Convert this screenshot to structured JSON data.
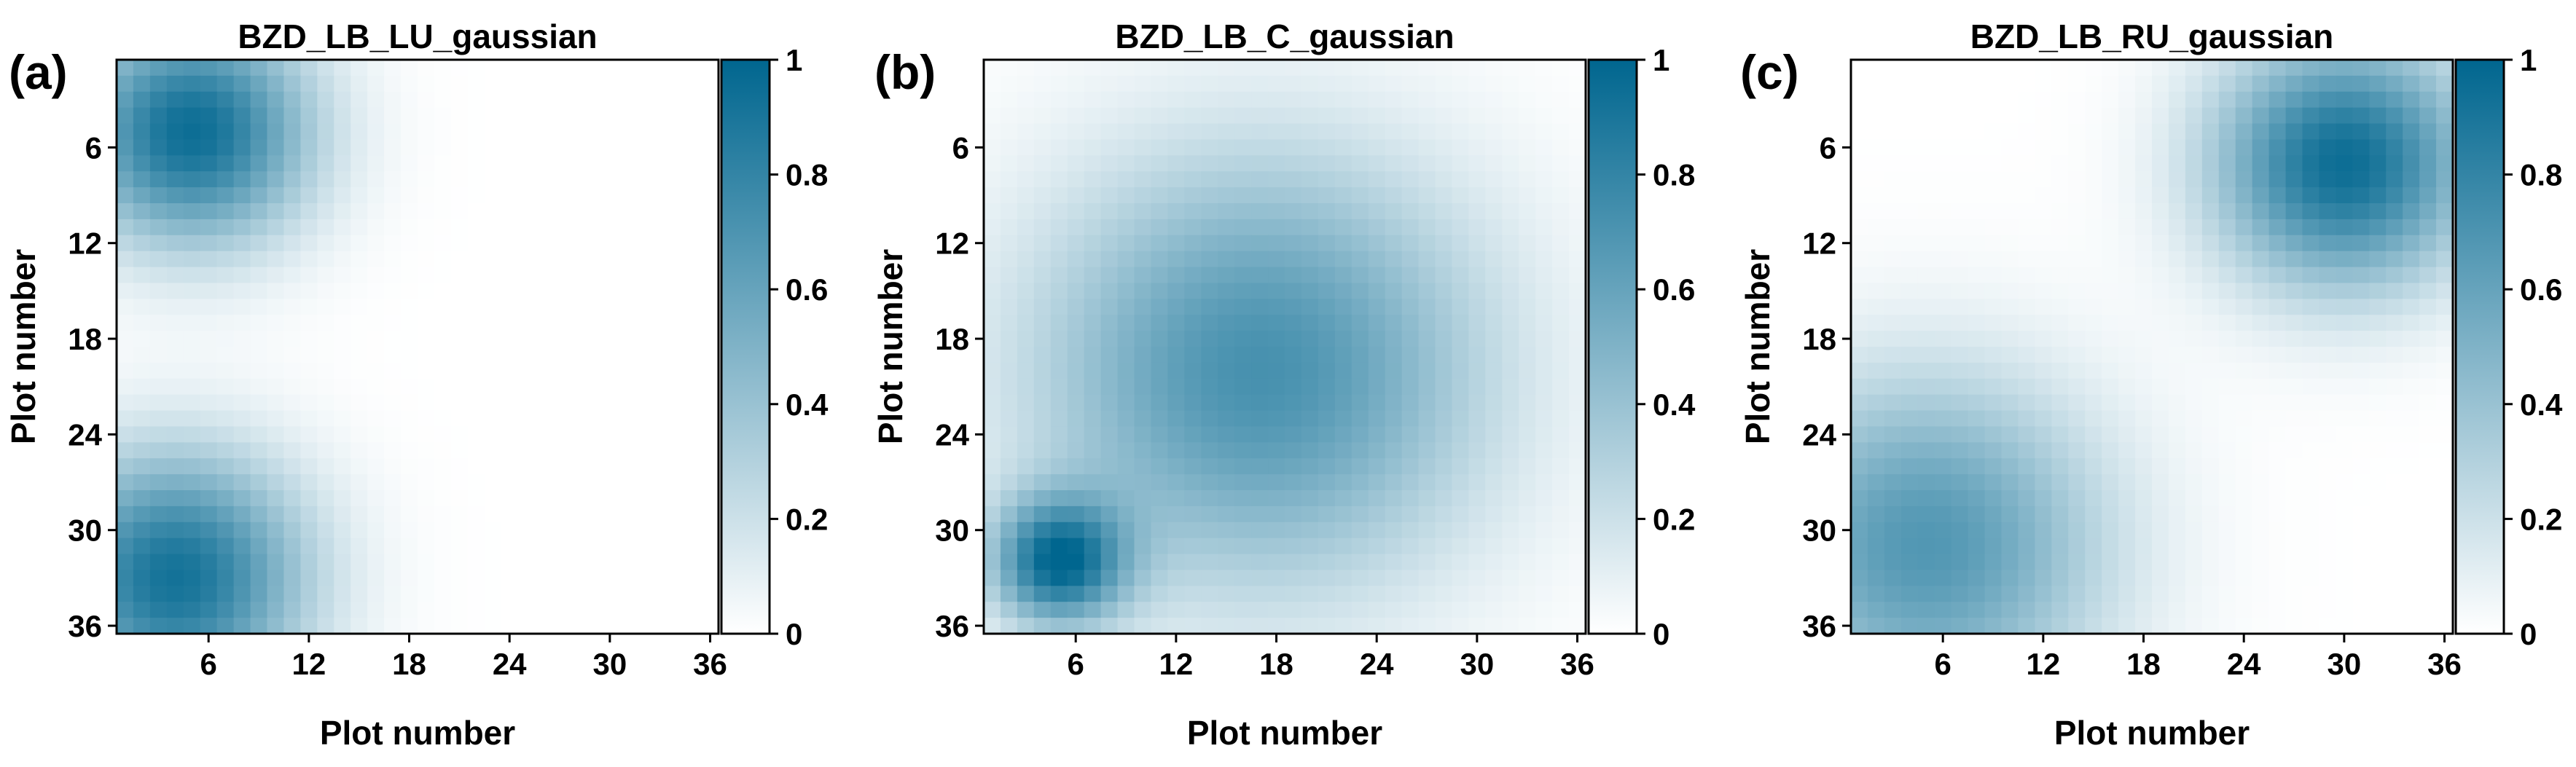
{
  "chart_data": [
    {
      "type": "heatmap",
      "panel_label": "(a)",
      "title": "BZD_LB_LU_gaussian",
      "xlabel": "Plot number",
      "ylabel": "Plot number",
      "grid_size": 36,
      "xticks": [
        "6",
        "12",
        "18",
        "24",
        "30",
        "36"
      ],
      "yticks": [
        "6",
        "12",
        "18",
        "24",
        "30",
        "36"
      ],
      "colorbar": {
        "min": 0,
        "max": 1,
        "ticks": [
          "0",
          "0.2",
          "0.4",
          "0.6",
          "0.8",
          "1"
        ]
      },
      "gaussians": [
        {
          "x": 5,
          "y": 5,
          "sigma": 5.0,
          "amp": 0.95
        },
        {
          "x": 4,
          "y": 33,
          "sigma": 5.5,
          "amp": 0.92
        }
      ]
    },
    {
      "type": "heatmap",
      "panel_label": "(b)",
      "title": "BZD_LB_C_gaussian",
      "xlabel": "Plot number",
      "ylabel": "Plot number",
      "grid_size": 36,
      "xticks": [
        "6",
        "12",
        "18",
        "24",
        "30",
        "36"
      ],
      "yticks": [
        "6",
        "12",
        "18",
        "24",
        "30",
        "36"
      ],
      "colorbar": {
        "min": 0,
        "max": 1,
        "ticks": [
          "0",
          "0.2",
          "0.4",
          "0.6",
          "0.8",
          "1"
        ]
      },
      "gaussians": [
        {
          "x": 17,
          "y": 20,
          "sigma": 9.5,
          "amp": 0.72
        },
        {
          "x": 5,
          "y": 32,
          "sigma": 2.8,
          "amp": 0.9
        }
      ]
    },
    {
      "type": "heatmap",
      "panel_label": "(c)",
      "title": "BZD_LB_RU_gaussian",
      "xlabel": "Plot number",
      "ylabel": "Plot number",
      "grid_size": 36,
      "xticks": [
        "6",
        "12",
        "18",
        "24",
        "30",
        "36"
      ],
      "yticks": [
        "6",
        "12",
        "18",
        "24",
        "30",
        "36"
      ],
      "colorbar": {
        "min": 0,
        "max": 1,
        "ticks": [
          "0",
          "0.2",
          "0.4",
          "0.6",
          "0.8",
          "1"
        ]
      },
      "gaussians": [
        {
          "x": 30,
          "y": 7,
          "sigma": 5.5,
          "amp": 0.95
        },
        {
          "x": 5,
          "y": 31,
          "sigma": 7.5,
          "amp": 0.68
        }
      ]
    }
  ],
  "colors": {
    "high": "#00668f",
    "low": "#ffffff",
    "frame": "#000000"
  }
}
